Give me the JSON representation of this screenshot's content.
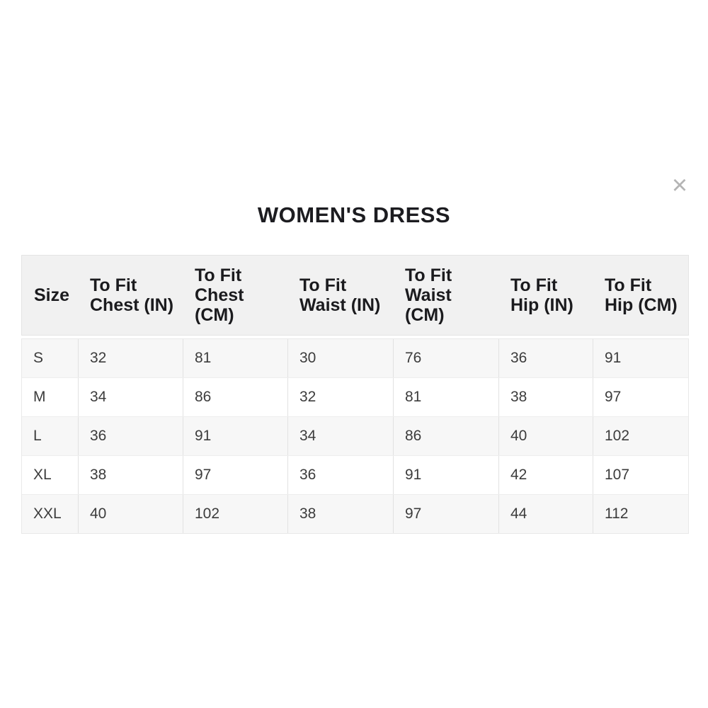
{
  "modal": {
    "title": "WOMEN'S DRESS"
  },
  "icons": {
    "close": "×"
  },
  "size_chart": {
    "columns": [
      "Size",
      "To Fit\nChest (IN)",
      "To Fit\nChest\n(CM)",
      "To Fit\nWaist (IN)",
      "To Fit\nWaist\n(CM)",
      "To Fit\nHip (IN)",
      "To Fit\nHip (CM)"
    ],
    "rows": [
      {
        "size": "S",
        "chest_in": "32",
        "chest_cm": "81",
        "waist_in": "30",
        "waist_cm": "76",
        "hip_in": "36",
        "hip_cm": "91"
      },
      {
        "size": "M",
        "chest_in": "34",
        "chest_cm": "86",
        "waist_in": "32",
        "waist_cm": "81",
        "hip_in": "38",
        "hip_cm": "97"
      },
      {
        "size": "L",
        "chest_in": "36",
        "chest_cm": "91",
        "waist_in": "34",
        "waist_cm": "86",
        "hip_in": "40",
        "hip_cm": "102"
      },
      {
        "size": "XL",
        "chest_in": "38",
        "chest_cm": "97",
        "waist_in": "36",
        "waist_cm": "91",
        "hip_in": "42",
        "hip_cm": "107"
      },
      {
        "size": "XXL",
        "chest_in": "40",
        "chest_cm": "102",
        "waist_in": "38",
        "waist_cm": "97",
        "hip_in": "44",
        "hip_cm": "112"
      }
    ]
  },
  "colors": {
    "header_bg": "#f1f1f1",
    "row_alt_bg": "#f7f7f7",
    "row_bg": "#ffffff",
    "border": "#e4e4e4",
    "header_text": "#1b1b1e",
    "body_text": "#3c3c3c",
    "close_icon": "#b4b4b4"
  }
}
